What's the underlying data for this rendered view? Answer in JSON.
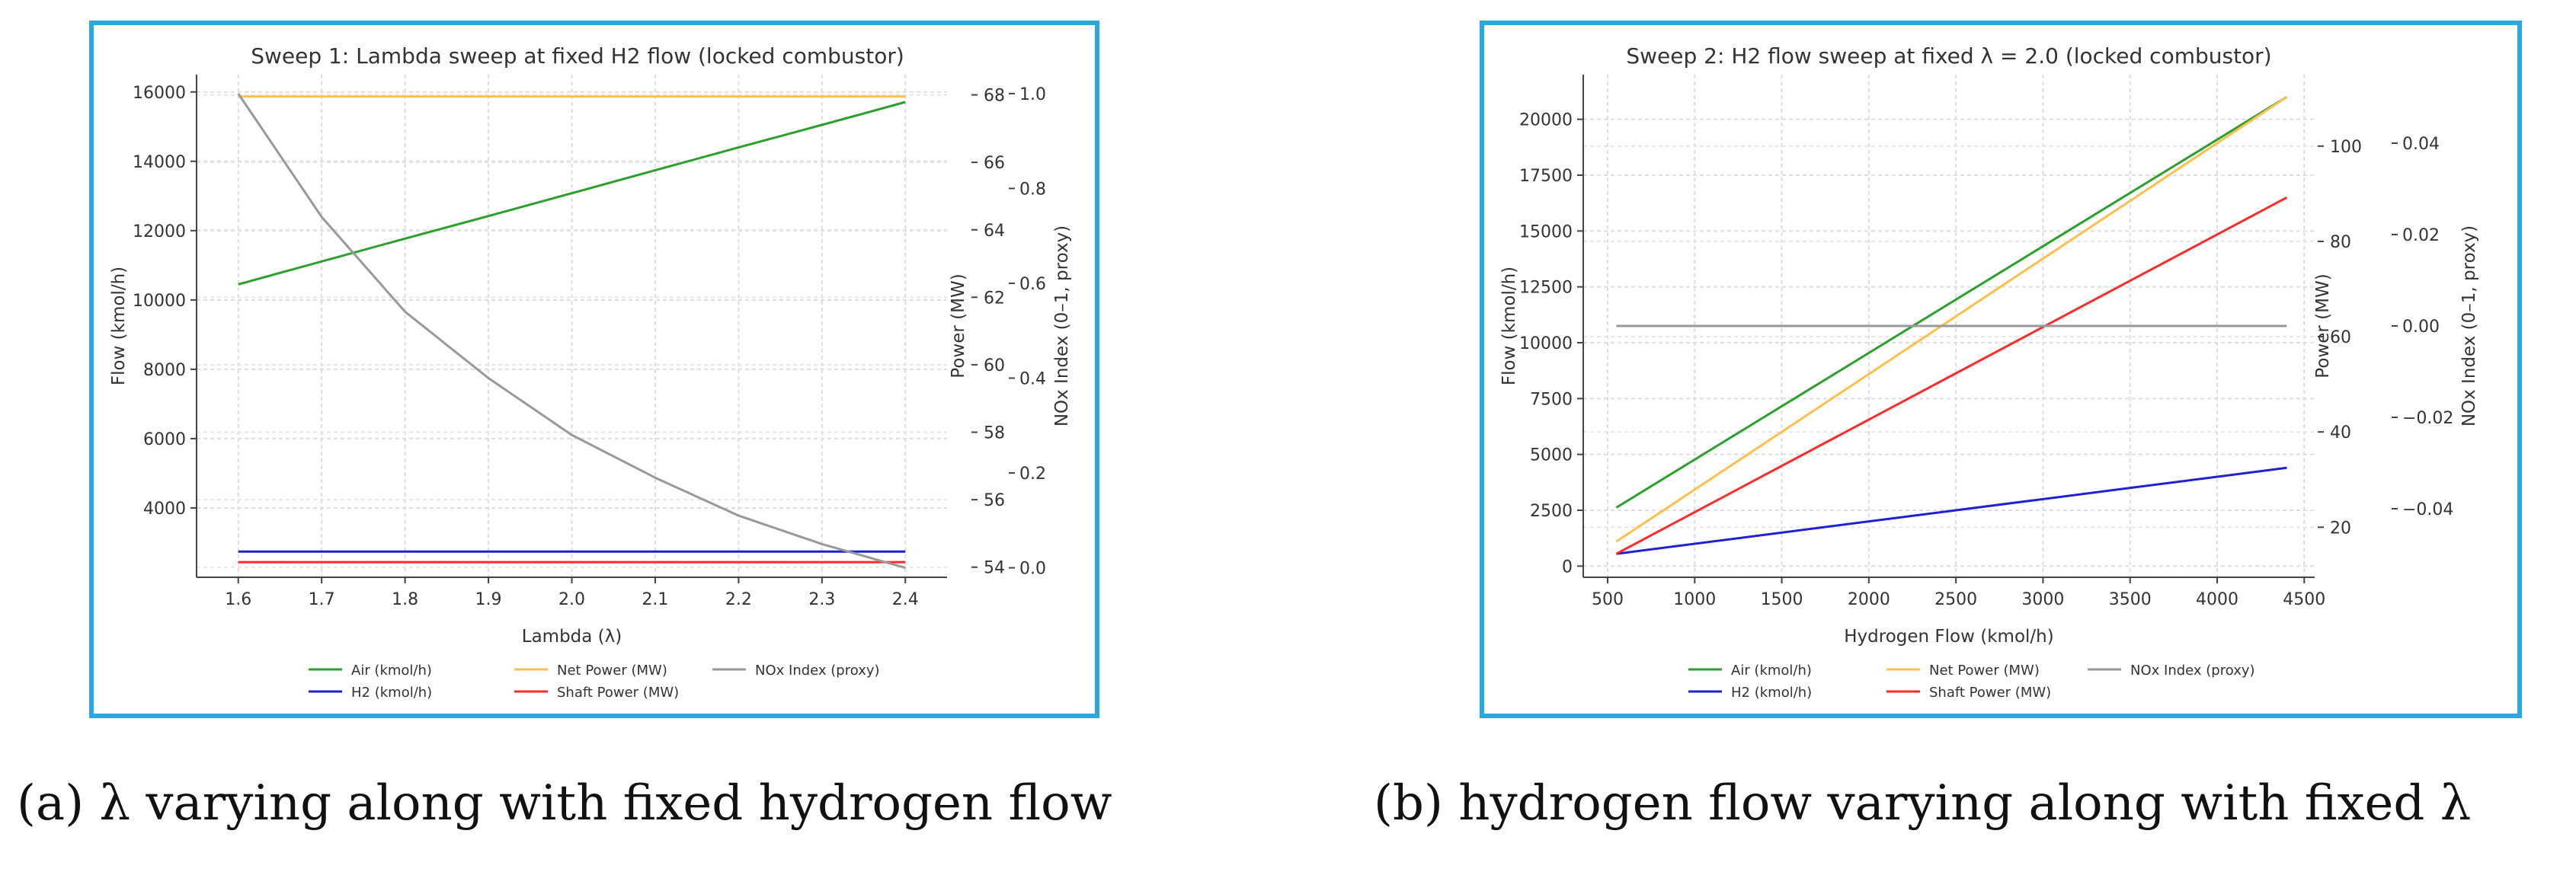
{
  "captions": {
    "a": "(a) λ varying along with fixed hydrogen flow",
    "b": "(b) hydrogen flow varying along with fixed λ"
  },
  "chart_data": [
    {
      "type": "line",
      "title": "Sweep 1: Lambda sweep at fixed H2 flow (locked combustor)",
      "xlabel": "Lambda (λ)",
      "x": [
        1.6,
        1.7,
        1.8,
        1.9,
        2.0,
        2.1,
        2.2,
        2.3,
        2.4
      ],
      "xlim": [
        1.55,
        2.45
      ],
      "xticks": [
        1.6,
        1.7,
        1.8,
        1.9,
        2.0,
        2.1,
        2.2,
        2.3,
        2.4
      ],
      "axes": {
        "left": {
          "label": "Flow (kmol/h)",
          "ylim": [
            2000,
            16500
          ],
          "ticks": [
            4000,
            6000,
            8000,
            10000,
            12000,
            14000,
            16000
          ],
          "tick_labels": [
            "4000",
            "6000",
            "8000",
            "10000",
            "12000",
            "14000",
            "16000"
          ]
        },
        "right1": {
          "label": "Power (MW)",
          "ylim": [
            53.7,
            68.6
          ],
          "ticks": [
            54,
            56,
            58,
            60,
            62,
            64,
            66,
            68
          ],
          "tick_labels": [
            "54",
            "56",
            "58",
            "60",
            "62",
            "64",
            "66",
            "68"
          ]
        },
        "right2": {
          "label": "NOx Index (0–1, proxy)",
          "ylim": [
            -0.02,
            1.04
          ],
          "ticks": [
            0,
            0.2,
            0.4,
            0.6,
            0.8,
            1.0
          ],
          "tick_labels": [
            "0.0",
            "0.2",
            "0.4",
            "0.6",
            "0.8",
            "1.0"
          ]
        }
      },
      "series": [
        {
          "name": "Air (kmol/h)",
          "axis": "left",
          "color": "#2ca02c",
          "values": [
            10450,
            11110,
            11770,
            12420,
            13080,
            13740,
            14400,
            15050,
            15710
          ]
        },
        {
          "name": "H2 (kmol/h)",
          "axis": "left",
          "color": "#1f1fd6",
          "values": [
            2740,
            2740,
            2740,
            2740,
            2740,
            2740,
            2740,
            2740,
            2740
          ]
        },
        {
          "name": "Net Power (MW)",
          "axis": "right1",
          "color": "#ffbf4d",
          "values": [
            67.95,
            67.95,
            67.95,
            67.95,
            67.95,
            67.95,
            67.95,
            67.95,
            67.95
          ]
        },
        {
          "name": "Shaft Power (MW)",
          "axis": "right1",
          "color": "#ff2a2a",
          "values": [
            54.15,
            54.15,
            54.15,
            54.15,
            54.15,
            54.15,
            54.15,
            54.15,
            54.15
          ]
        },
        {
          "name": "NOx Index (proxy)",
          "axis": "right2",
          "color": "#999999",
          "values": [
            1.0,
            0.74,
            0.54,
            0.4,
            0.28,
            0.19,
            0.11,
            0.05,
            0.0
          ]
        }
      ],
      "legend": {
        "position": "bottom",
        "columns": 3,
        "order": [
          "Air (kmol/h)",
          "H2 (kmol/h)",
          "Net Power (MW)",
          "Shaft Power (MW)",
          "NOx Index (proxy)"
        ]
      },
      "grid": true
    },
    {
      "type": "line",
      "title": "Sweep 2: H2 flow sweep at fixed λ = 2.0 (locked combustor)",
      "xlabel": "Hydrogen Flow (kmol/h)",
      "x": [
        550,
        4400
      ],
      "xlim": [
        360,
        4560
      ],
      "xticks": [
        500,
        1000,
        1500,
        2000,
        2500,
        3000,
        3500,
        4000,
        4500
      ],
      "axes": {
        "left": {
          "label": "Flow (kmol/h)",
          "ylim": [
            -500,
            22000
          ],
          "ticks": [
            0,
            2500,
            5000,
            7500,
            10000,
            12500,
            15000,
            17500,
            20000
          ],
          "tick_labels": [
            "0",
            "2500",
            "5000",
            "7500",
            "10000",
            "12500",
            "15000",
            "17500",
            "20000"
          ]
        },
        "right1": {
          "label": "Power (MW)",
          "ylim": [
            9.5,
            115
          ],
          "ticks": [
            20,
            40,
            60,
            80,
            100
          ],
          "tick_labels": [
            "20",
            "40",
            "60",
            "80",
            "100"
          ]
        },
        "right2": {
          "label": "NOx Index (0–1, proxy)",
          "ylim": [
            -0.055,
            0.055
          ],
          "ticks": [
            -0.04,
            -0.02,
            0.0,
            0.02,
            0.04
          ],
          "tick_labels": [
            "−0.04",
            "−0.02",
            "0.00",
            "0.02",
            "0.04"
          ]
        }
      },
      "series": [
        {
          "name": "Air (kmol/h)",
          "axis": "left",
          "color": "#2ca02c",
          "values": [
            2620,
            21000
          ]
        },
        {
          "name": "H2 (kmol/h)",
          "axis": "left",
          "color": "#1f1fd6",
          "values": [
            550,
            4400
          ]
        },
        {
          "name": "Net Power (MW)",
          "axis": "left",
          "color": "#ffbf4d",
          "values": [
            1100,
            21000
          ]
        },
        {
          "name": "Shaft Power (MW)",
          "axis": "left",
          "color": "#ff2a2a",
          "values": [
            550,
            16500
          ]
        },
        {
          "name": "NOx Index (proxy)",
          "axis": "right2",
          "color": "#999999",
          "values": [
            0.0,
            0.0
          ]
        }
      ],
      "legend": {
        "position": "bottom",
        "columns": 3,
        "order": [
          "Air (kmol/h)",
          "H2 (kmol/h)",
          "Net Power (MW)",
          "Shaft Power (MW)",
          "NOx Index (proxy)"
        ]
      },
      "grid": true
    }
  ]
}
